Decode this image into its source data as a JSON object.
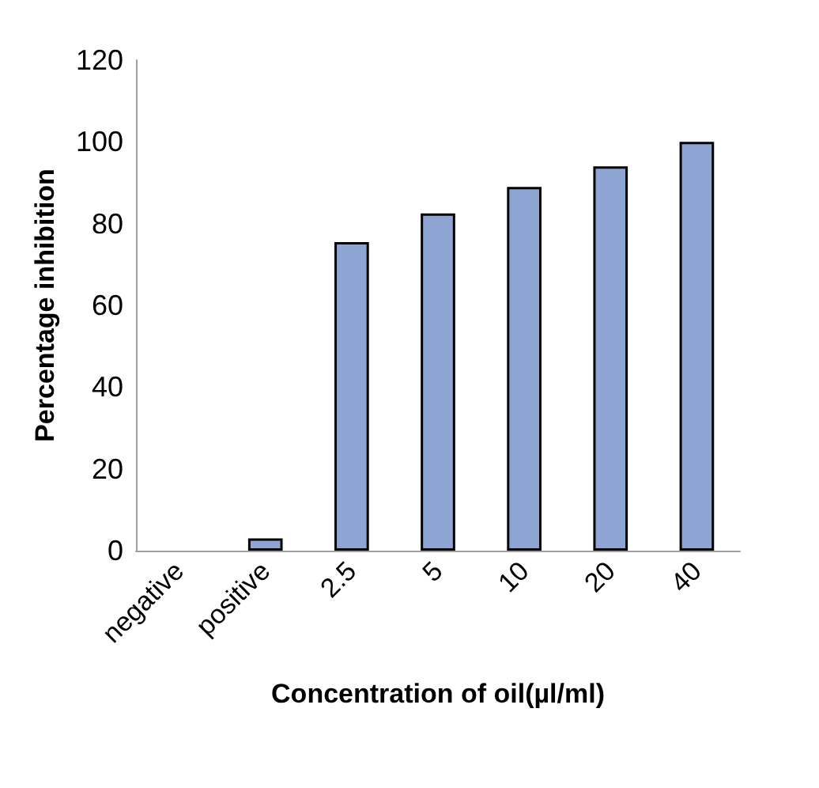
{
  "chart_data": {
    "type": "bar",
    "xlabel": "Concentration of oil(µl/ml)",
    "ylabel": "Percentage inhibition",
    "categories": [
      "negative",
      "positive",
      "2.5",
      "5",
      "10",
      "20",
      "40"
    ],
    "values": [
      0,
      3,
      75.5,
      82.5,
      89,
      94,
      100
    ],
    "color": "#8ea5d4",
    "ylim": [
      0,
      120
    ],
    "yticks": [
      0,
      20,
      40,
      60,
      80,
      100,
      120
    ],
    "grid": false
  }
}
